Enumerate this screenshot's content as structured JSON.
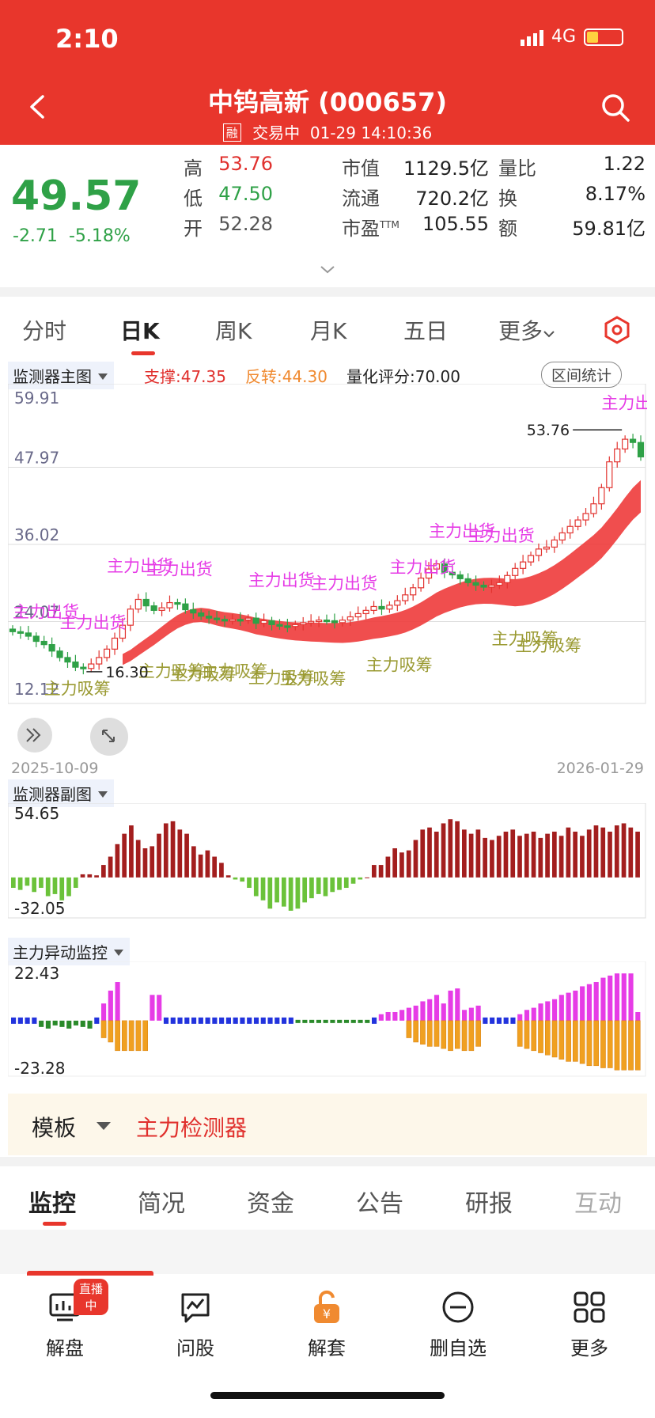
{
  "status_bar": {
    "time": "2:10",
    "network": "4G"
  },
  "header": {
    "title": "中钨高新 (000657)",
    "rong_badge": "融",
    "trade_status": "交易中",
    "trade_time": "01-29 14:10:36"
  },
  "quote": {
    "price": "49.57",
    "change": "-2.71",
    "change_pct": "-5.18%",
    "rows": [
      [
        {
          "label": "高",
          "value": "53.76",
          "color": "red"
        },
        {
          "label": "市值",
          "value": "1129.5亿",
          "color": "black"
        },
        {
          "label": "量比",
          "value": "1.22",
          "color": "black"
        }
      ],
      [
        {
          "label": "低",
          "value": "47.50",
          "color": "green"
        },
        {
          "label": "流通",
          "value": "720.2亿",
          "color": "black"
        },
        {
          "label": "换",
          "value": "8.17%",
          "color": "black"
        }
      ],
      [
        {
          "label": "开",
          "value": "52.28",
          "color": "dark"
        },
        {
          "label": "市盈TTM",
          "value": "105.55",
          "color": "black"
        },
        {
          "label": "额",
          "value": "59.81亿",
          "color": "black"
        }
      ]
    ]
  },
  "tabs": [
    "分时",
    "日K",
    "周K",
    "月K",
    "五日",
    "更多",
    ""
  ],
  "active_tab": "日K",
  "main_chart": {
    "indicator_name": "监测器主图",
    "support_label": "支撑:47.35",
    "reversal_label": "反转:44.30",
    "score_label": "量化评分:70.00",
    "range_stats_button": "区间统计",
    "y_ticks": [
      "59.91",
      "47.97",
      "36.02",
      "24.07",
      "12.12"
    ],
    "date_start": "2025-10-09",
    "date_end": "2026-01-29",
    "high_marker": "53.76",
    "low_marker": "16.30",
    "sell_signal": "主力出货",
    "buy_signal": "主力吸筹"
  },
  "sub_chart1": {
    "name": "监测器副图",
    "max": "54.65",
    "min": "-32.05"
  },
  "sub_chart2": {
    "name": "主力异动监控",
    "max": "22.43",
    "min": "-23.28"
  },
  "chart_data": [
    {
      "type": "candlestick",
      "title": "监测器主图",
      "ylim": [
        12.12,
        59.91
      ],
      "x_range": [
        "2025-10-09",
        "2026-01-29"
      ],
      "closes": [
        22.5,
        22.3,
        21.8,
        21.0,
        20.5,
        19.5,
        18.5,
        17.8,
        17.0,
        16.8,
        17.5,
        18.5,
        19.8,
        21.5,
        23.5,
        26.0,
        27.5,
        26.5,
        25.8,
        26.2,
        27.0,
        26.8,
        25.9,
        25.4,
        24.9,
        24.6,
        24.4,
        24.2,
        24.4,
        24.3,
        24.6,
        23.8,
        24.2,
        23.6,
        23.4,
        23.3,
        23.6,
        23.9,
        24.1,
        24.3,
        24.2,
        23.9,
        24.3,
        24.8,
        25.3,
        25.8,
        26.4,
        26.0,
        26.6,
        27.3,
        28.2,
        29.3,
        30.8,
        32.2,
        33.0,
        31.7,
        31.3,
        30.7,
        30.1,
        29.7,
        29.4,
        29.7,
        30.1,
        31.2,
        32.3,
        33.3,
        34.3,
        35.3,
        35.6,
        36.7,
        37.8,
        38.8,
        39.8,
        40.8,
        42.3,
        44.8,
        48.8,
        50.8,
        52.3,
        51.8,
        49.57
      ],
      "signals": {
        "主力出货": 10,
        "主力吸筹": 9
      }
    },
    {
      "type": "bar",
      "title": "监测器副图",
      "ylim": [
        -32.05,
        54.65
      ],
      "values": [
        -10,
        -12,
        -8,
        -14,
        -10,
        -18,
        -16,
        -22,
        -18,
        -10,
        3,
        3,
        2,
        12,
        20,
        32,
        42,
        50,
        36,
        28,
        30,
        42,
        52,
        54,
        46,
        42,
        30,
        22,
        26,
        20,
        14,
        2,
        -2,
        -4,
        -10,
        -18,
        -22,
        -30,
        -24,
        -28,
        -32,
        -30,
        -24,
        -20,
        -16,
        -18,
        -14,
        -12,
        -10,
        -6,
        -2,
        0,
        12,
        12,
        20,
        28,
        24,
        26,
        36,
        46,
        48,
        44,
        52,
        56,
        54,
        46,
        42,
        46,
        38,
        36,
        40,
        44,
        46,
        40,
        42,
        44,
        38,
        42,
        44,
        40,
        48,
        44,
        40,
        46,
        50,
        48,
        44,
        50,
        52,
        48,
        44
      ]
    },
    {
      "type": "bar",
      "title": "主力异动监控",
      "ylim": [
        -23.28,
        22.43
      ],
      "pos_values": [
        0,
        0,
        0,
        0,
        0,
        0,
        0,
        0,
        0,
        0,
        0,
        0,
        0,
        8,
        14,
        18,
        0,
        0,
        0,
        0,
        12,
        12,
        0,
        0,
        0,
        0,
        0,
        0,
        0,
        0,
        0,
        0,
        0,
        0,
        0,
        0,
        0,
        0,
        0,
        0,
        0,
        0,
        0,
        0,
        0,
        0,
        0,
        0,
        0,
        0,
        0,
        0,
        0,
        3,
        4,
        4,
        5,
        6,
        7,
        9,
        10,
        12,
        8,
        14,
        15,
        5,
        6,
        7,
        0,
        0,
        0,
        0,
        0,
        3,
        5,
        6,
        8,
        9,
        10,
        12,
        13,
        14,
        16,
        17,
        18,
        20,
        21,
        22,
        22,
        22,
        4
      ],
      "neg_values": [
        0,
        0,
        0,
        0,
        0,
        0,
        0,
        0,
        0,
        0,
        0,
        0,
        0,
        -8,
        -10,
        -14,
        -14,
        -14,
        -14,
        -14,
        0,
        0,
        0,
        0,
        0,
        0,
        0,
        0,
        0,
        0,
        0,
        0,
        0,
        0,
        0,
        0,
        0,
        0,
        0,
        0,
        0,
        0,
        0,
        0,
        0,
        0,
        0,
        0,
        0,
        0,
        0,
        0,
        0,
        0,
        0,
        0,
        0,
        -8,
        -10,
        -11,
        -12,
        -12,
        -13,
        -14,
        -13,
        -14,
        -14,
        -12,
        0,
        0,
        0,
        0,
        0,
        -12,
        -13,
        -14,
        -15,
        -16,
        -17,
        -18,
        -19,
        -19,
        -20,
        -21,
        -21,
        -22,
        -22,
        -23,
        -23,
        -23,
        -23
      ]
    }
  ],
  "template": {
    "label": "模板",
    "value": "主力检测器"
  },
  "sub_tabs": [
    "监控",
    "简况",
    "资金",
    "公告",
    "研报",
    "互动"
  ],
  "bottom_nav": {
    "live_badge": "直播中",
    "items": [
      "解盘",
      "问股",
      "解套",
      "删自选",
      "更多"
    ]
  },
  "colors": {
    "brand_red": "#e8362c",
    "down_green": "#2fa147",
    "signal_magenta": "#e63ce6",
    "signal_olive": "#9a9a32"
  }
}
